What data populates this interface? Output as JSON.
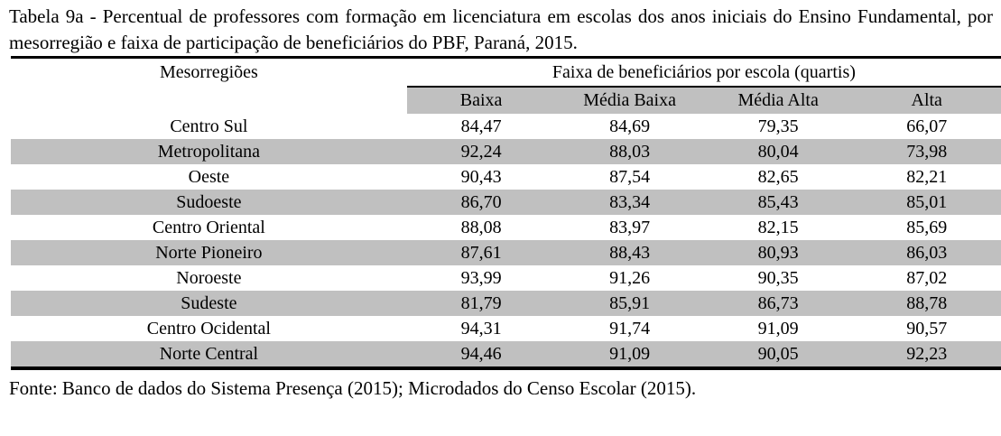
{
  "title": "Tabela 9a - Percentual de professores com formação em licenciatura em escolas dos anos iniciais do Ensino Fundamental, por mesorregião e faixa de participação de beneficiários do PBF, Paraná, 2015.",
  "table": {
    "row_header_label": "Mesorregiões",
    "group_header": "Faixa de beneficiários por escola (quartis)",
    "column_headers": [
      "Baixa",
      "Média Baixa",
      "Média Alta",
      "Alta"
    ],
    "rows": [
      {
        "name": "Centro Sul",
        "values": [
          "84,47",
          "84,69",
          "79,35",
          "66,07"
        ]
      },
      {
        "name": "Metropolitana",
        "values": [
          "92,24",
          "88,03",
          "80,04",
          "73,98"
        ]
      },
      {
        "name": "Oeste",
        "values": [
          "90,43",
          "87,54",
          "82,65",
          "82,21"
        ]
      },
      {
        "name": "Sudoeste",
        "values": [
          "86,70",
          "83,34",
          "85,43",
          "85,01"
        ]
      },
      {
        "name": "Centro Oriental",
        "values": [
          "88,08",
          "83,97",
          "82,15",
          "85,69"
        ]
      },
      {
        "name": "Norte Pioneiro",
        "values": [
          "87,61",
          "88,43",
          "80,93",
          "86,03"
        ]
      },
      {
        "name": "Noroeste",
        "values": [
          "93,99",
          "91,26",
          "90,35",
          "87,02"
        ]
      },
      {
        "name": "Sudeste",
        "values": [
          "81,79",
          "85,91",
          "86,73",
          "88,78"
        ]
      },
      {
        "name": "Centro Ocidental",
        "values": [
          "94,31",
          "91,74",
          "91,09",
          "90,57"
        ]
      },
      {
        "name": "Norte Central",
        "values": [
          "94,46",
          "91,09",
          "90,05",
          "92,23"
        ]
      }
    ]
  },
  "source": "Fonte: Banco de dados do Sistema Presença (2015); Microdados do Censo Escolar (2015).",
  "colors": {
    "stripe": "#c0c0c0",
    "rule": "#000000",
    "text": "#000000",
    "background": "#ffffff"
  },
  "chart_data": {
    "type": "table",
    "title": "Tabela 9a - Percentual de professores com formação em licenciatura em escolas dos anos iniciais do Ensino Fundamental, por mesorregião e faixa de participação de beneficiários do PBF, Paraná, 2015.",
    "group_header": "Faixa de beneficiários por escola (quartis)",
    "categories": [
      "Centro Sul",
      "Metropolitana",
      "Oeste",
      "Sudoeste",
      "Centro Oriental",
      "Norte Pioneiro",
      "Noroeste",
      "Sudeste",
      "Centro Ocidental",
      "Norte Central"
    ],
    "series": [
      {
        "name": "Baixa",
        "values": [
          84.47,
          92.24,
          90.43,
          86.7,
          88.08,
          87.61,
          93.99,
          81.79,
          94.31,
          94.46
        ]
      },
      {
        "name": "Média Baixa",
        "values": [
          84.69,
          88.03,
          87.54,
          83.34,
          83.97,
          88.43,
          91.26,
          85.91,
          91.74,
          91.09
        ]
      },
      {
        "name": "Média Alta",
        "values": [
          79.35,
          80.04,
          82.65,
          85.43,
          82.15,
          80.93,
          90.35,
          86.73,
          91.09,
          90.05
        ]
      },
      {
        "name": "Alta",
        "values": [
          66.07,
          73.98,
          82.21,
          85.01,
          85.69,
          86.03,
          87.02,
          88.78,
          90.57,
          92.23
        ]
      }
    ],
    "source": "Fonte: Banco de dados do Sistema Presença (2015); Microdados do Censo Escolar (2015)."
  }
}
